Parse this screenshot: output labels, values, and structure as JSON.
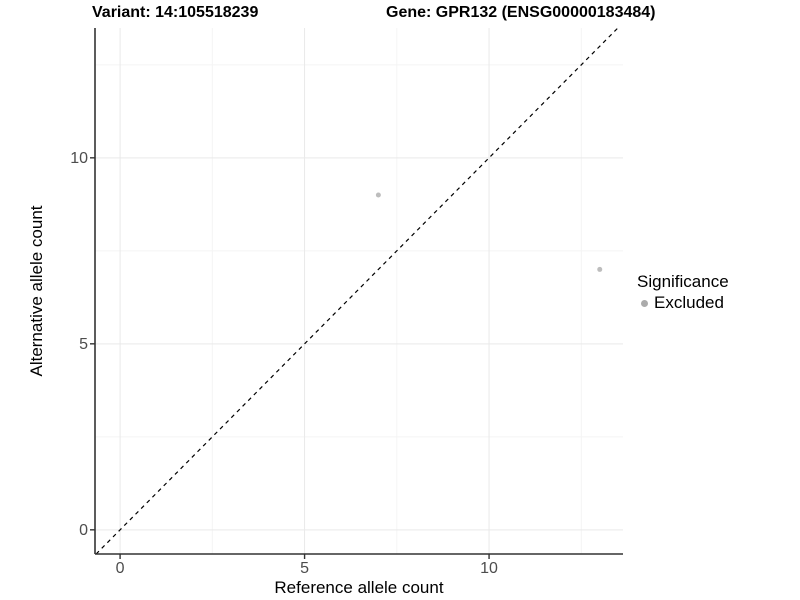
{
  "chart_data": {
    "type": "scatter",
    "title_left": "Variant: 14:105518239",
    "title_right": "Gene: GPR132 (ENSG00000183484)",
    "xlabel": "Reference allele count",
    "ylabel": "Alternative allele count",
    "x_domain": [
      -0.68,
      13.63
    ],
    "y_domain": [
      -0.65,
      13.49
    ],
    "x_ticks": [
      0,
      5,
      10
    ],
    "y_ticks": [
      0,
      5,
      10
    ],
    "x_minor_ticks": [
      2.5,
      7.5,
      12.5
    ],
    "y_minor_ticks": [
      2.5,
      7.5,
      12.5
    ],
    "grid": "major and minor, on white panel",
    "legend": {
      "title": "Significance",
      "position": "right",
      "entries": [
        {
          "label": "Excluded",
          "color": "#b0b0b0"
        }
      ]
    },
    "series": [
      {
        "name": "Excluded",
        "color": "#bdbdbd",
        "points": [
          [
            7,
            9
          ],
          [
            13,
            7
          ]
        ]
      }
    ],
    "reference_line": {
      "equation": "y = x",
      "style": "dashed",
      "color": "#000000"
    },
    "colors": {
      "grid_major": "#e9e9e9",
      "grid_minor": "#f4f4f4",
      "axis_line": "#333333",
      "tick_mark": "#333333",
      "tick_label": "#4d4d4d",
      "point": "#bdbdbd",
      "legend_key": "#ababab"
    }
  }
}
